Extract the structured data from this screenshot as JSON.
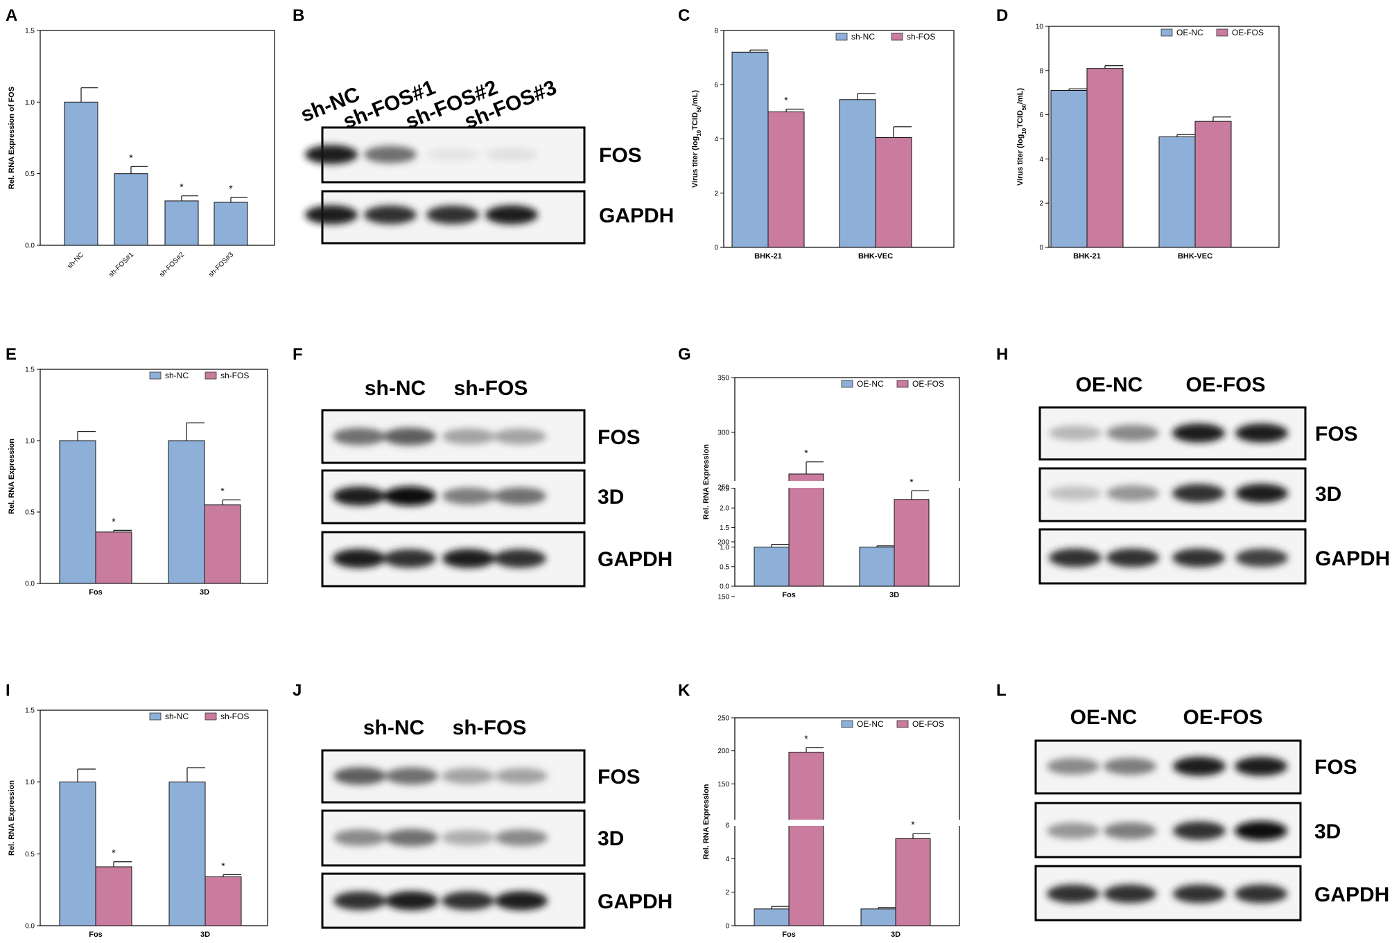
{
  "colors": {
    "blue": "#8eafd7",
    "pink": "#c97c9e",
    "axis": "#000000"
  },
  "chart_data": [
    {
      "panel": "A",
      "type": "bar",
      "ylabel": "Rel. RNA Expression of FOS",
      "ylim": [
        0,
        1.5
      ],
      "yticks": [
        "0.0",
        "0.5",
        "1.0",
        "1.5"
      ],
      "categories": [
        "sh-NC",
        "sh-FOS#1",
        "sh-FOS#2",
        "sh-FOS#3"
      ],
      "rotate_categories": true,
      "series": [
        {
          "color": "blue",
          "values": [
            1.0,
            0.5,
            0.31,
            0.3
          ],
          "errors": [
            0.1,
            0.05,
            0.035,
            0.035
          ],
          "stars": [
            false,
            true,
            true,
            true
          ]
        }
      ]
    },
    {
      "panel": "C",
      "type": "bar",
      "ylabel": "Virus titer (log10TCID50/mL)",
      "ylim": [
        0,
        8
      ],
      "yticks": [
        "0",
        "2",
        "4",
        "6",
        "8"
      ],
      "categories": [
        "BHK-21",
        "BHK-VEC"
      ],
      "series": [
        {
          "name": "sh-NC",
          "color": "blue",
          "values": [
            7.2,
            5.45
          ],
          "errors": [
            0.08,
            0.22
          ],
          "stars": [
            false,
            false
          ]
        },
        {
          "name": "sh-FOS",
          "color": "pink",
          "values": [
            5.0,
            4.05
          ],
          "errors": [
            0.1,
            0.4
          ],
          "stars": [
            true,
            false
          ]
        }
      ]
    },
    {
      "panel": "D",
      "type": "bar",
      "ylabel": "Virus titer (log10TCID50/mL)",
      "ylim": [
        0,
        10
      ],
      "yticks": [
        "0",
        "2",
        "4",
        "6",
        "8",
        "10"
      ],
      "categories": [
        "BHK-21",
        "BHK-VEC"
      ],
      "series": [
        {
          "name": "OE-NC",
          "color": "blue",
          "values": [
            7.1,
            5.0
          ],
          "errors": [
            0.07,
            0.1
          ],
          "stars": [
            false,
            false
          ]
        },
        {
          "name": "OE-FOS",
          "color": "pink",
          "values": [
            8.1,
            5.7
          ],
          "errors": [
            0.12,
            0.2
          ],
          "stars": [
            false,
            false
          ]
        }
      ]
    },
    {
      "panel": "E",
      "type": "bar",
      "ylabel": "Rel. RNA Expression",
      "ylim": [
        0,
        1.5
      ],
      "yticks": [
        "0.0",
        "0.5",
        "1.0",
        "1.5"
      ],
      "categories": [
        "Fos",
        "3D"
      ],
      "series": [
        {
          "name": "sh-NC",
          "color": "blue",
          "values": [
            1.0,
            1.0
          ],
          "errors": [
            0.065,
            0.125
          ],
          "stars": [
            false,
            false
          ]
        },
        {
          "name": "sh-FOS",
          "color": "pink",
          "values": [
            0.36,
            0.55
          ],
          "errors": [
            0.012,
            0.035
          ],
          "stars": [
            true,
            true
          ]
        }
      ]
    },
    {
      "panel": "G",
      "type": "bar",
      "ylabel": "Rel. RNA Expression",
      "broken_axis": true,
      "lower_range": [
        0,
        2.5
      ],
      "lower_ticks": [
        "0.0",
        "0.5",
        "1.0",
        "1.5",
        "2.0",
        "2.5"
      ],
      "upper_ticks": [
        "300",
        "350"
      ],
      "upper_range": [
        250,
        350
      ],
      "upper_extra_ticks": [
        "250",
        "200",
        "150"
      ],
      "categories": [
        "Fos",
        "3D"
      ],
      "series": [
        {
          "name": "OE-NC",
          "color": "blue",
          "values": [
            1.0,
            1.0
          ],
          "errors": [
            0.07,
            0.03
          ],
          "stars": [
            false,
            false
          ]
        },
        {
          "name": "OE-FOS",
          "color": "pink",
          "values": [
            262,
            2.22
          ],
          "errors": [
            11,
            0.22
          ],
          "stars": [
            true,
            true
          ]
        }
      ]
    },
    {
      "panel": "I",
      "type": "bar",
      "ylabel": "Rel. RNA Expression",
      "ylim": [
        0,
        1.5
      ],
      "yticks": [
        "0.0",
        "0.5",
        "1.0",
        "1.5"
      ],
      "categories": [
        "Fos",
        "3D"
      ],
      "series": [
        {
          "name": "sh-NC",
          "color": "blue",
          "values": [
            1.0,
            1.0
          ],
          "errors": [
            0.09,
            0.1
          ],
          "stars": [
            false,
            false
          ]
        },
        {
          "name": "sh-FOS",
          "color": "pink",
          "values": [
            0.41,
            0.34
          ],
          "errors": [
            0.035,
            0.015
          ],
          "stars": [
            true,
            true
          ]
        }
      ]
    },
    {
      "panel": "K",
      "type": "bar",
      "ylabel": "Rel. RNA Expression",
      "broken_axis": true,
      "lower_range": [
        0,
        6
      ],
      "lower_ticks": [
        "0",
        "2",
        "4",
        "6"
      ],
      "upper_range": [
        100,
        250
      ],
      "upper_ticks": [
        "150",
        "200",
        "250"
      ],
      "categories": [
        "Fos",
        "3D"
      ],
      "series": [
        {
          "name": "OE-NC",
          "color": "blue",
          "values": [
            1.0,
            1.0
          ],
          "errors": [
            0.15,
            0.08
          ],
          "stars": [
            false,
            false
          ]
        },
        {
          "name": "OE-FOS",
          "color": "pink",
          "values": [
            198,
            5.2
          ],
          "errors": [
            7,
            0.3
          ],
          "stars": [
            true,
            true
          ]
        }
      ]
    }
  ],
  "blots": [
    {
      "panel": "B",
      "lanes": [
        "sh-NC",
        "sh-FOS#1",
        "sh-FOS#2",
        "sh-FOS#3"
      ],
      "rows": [
        {
          "label": "FOS",
          "intensity": [
            0.95,
            0.7,
            0.12,
            0.15
          ]
        },
        {
          "label": "GAPDH",
          "intensity": [
            0.95,
            0.9,
            0.9,
            0.95
          ]
        }
      ]
    },
    {
      "panel": "F",
      "lanes": [
        "sh-NC",
        "sh-FOS"
      ],
      "rows": [
        {
          "label": "FOS",
          "intensity": [
            0.7,
            0.75,
            0.5,
            0.5
          ]
        },
        {
          "label": "3D",
          "intensity": [
            0.95,
            1.0,
            0.65,
            0.7
          ]
        },
        {
          "label": "GAPDH",
          "intensity": [
            0.95,
            0.9,
            0.95,
            0.9
          ]
        }
      ]
    },
    {
      "panel": "H",
      "lanes": [
        "OE-NC",
        "OE-FOS"
      ],
      "rows": [
        {
          "label": "FOS",
          "intensity": [
            0.4,
            0.6,
            0.95,
            0.95
          ]
        },
        {
          "label": "3D",
          "intensity": [
            0.35,
            0.55,
            0.9,
            0.95
          ]
        },
        {
          "label": "GAPDH",
          "intensity": [
            0.9,
            0.9,
            0.9,
            0.85
          ]
        }
      ]
    },
    {
      "panel": "J",
      "lanes": [
        "sh-NC",
        "sh-FOS"
      ],
      "rows": [
        {
          "label": "FOS",
          "intensity": [
            0.75,
            0.7,
            0.5,
            0.5
          ]
        },
        {
          "label": "3D",
          "intensity": [
            0.6,
            0.7,
            0.45,
            0.6
          ]
        },
        {
          "label": "GAPDH",
          "intensity": [
            0.9,
            0.95,
            0.9,
            0.95
          ]
        }
      ]
    },
    {
      "panel": "L",
      "lanes": [
        "OE-NC",
        "OE-FOS"
      ],
      "rows": [
        {
          "label": "FOS",
          "intensity": [
            0.6,
            0.65,
            0.95,
            0.95
          ]
        },
        {
          "label": "3D",
          "intensity": [
            0.55,
            0.65,
            0.9,
            1.0
          ]
        },
        {
          "label": "GAPDH",
          "intensity": [
            0.9,
            0.9,
            0.9,
            0.9
          ]
        }
      ]
    }
  ]
}
